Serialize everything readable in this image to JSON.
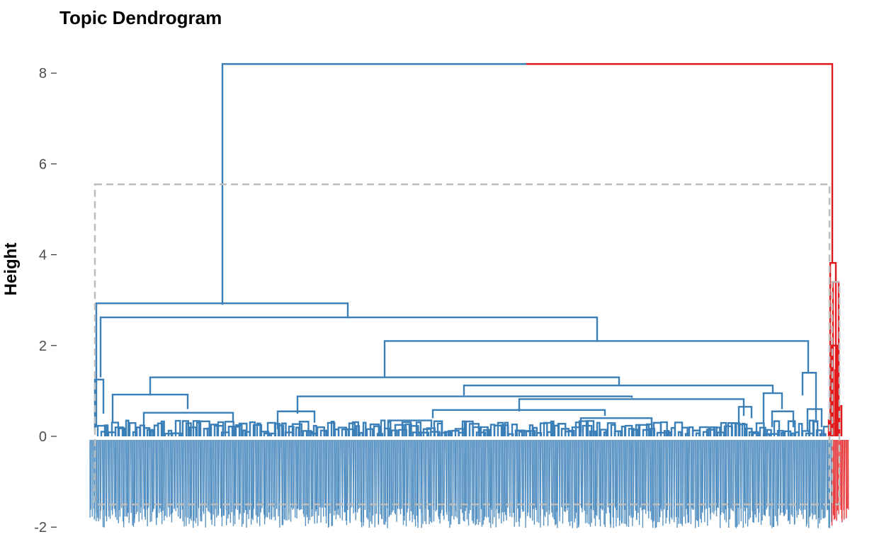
{
  "chart_data": {
    "type": "dendrogram",
    "title": "Topic Dendrogram",
    "ylabel": "Height",
    "xlabel": "",
    "ylim": [
      -2,
      8.2
    ],
    "yticks": [
      -2,
      0,
      2,
      4,
      6,
      8
    ],
    "grid": false,
    "colors": {
      "cluster_1": "#3a7fb8",
      "cluster_2": "#e31a1c",
      "rect": "#bdbdbd"
    },
    "clusters": [
      {
        "color": "#3a7fb8",
        "leaf_share": 0.965
      },
      {
        "color": "#e31a1c",
        "leaf_share": 0.035
      }
    ],
    "merges": [
      {
        "height": 8.2,
        "x": [
          0.17,
          0.98
        ],
        "split_color_at": 0.58
      },
      {
        "height": 2.9,
        "x": [
          0.0,
          0.34
        ]
      },
      {
        "height": 2.6,
        "x": [
          0.01,
          0.67
        ]
      },
      {
        "height": 2.1,
        "x": [
          0.39,
          0.96
        ]
      },
      {
        "height": 1.3,
        "x": [
          0.08,
          0.71
        ]
      },
      {
        "height": 1.4,
        "x": [
          0.95,
          0.97
        ]
      },
      {
        "height": 1.1,
        "x": [
          0.5,
          0.71
        ]
      },
      {
        "height": 0.9,
        "x": [
          0.93,
          0.95
        ]
      },
      {
        "height": 0.9,
        "x": [
          0.2,
          0.84
        ]
      },
      {
        "height": 0.9,
        "x": [
          0.02,
          0.12
        ]
      },
      {
        "height": 0.8,
        "x": [
          0.28,
          0.88
        ]
      },
      {
        "height": 0.6,
        "x": [
          0.56,
          0.77
        ]
      },
      {
        "height": 3.8,
        "x": [
          0.981,
          0.988
        ],
        "cluster": 2
      },
      {
        "height": 3.4,
        "x": [
          0.983,
          0.99
        ],
        "cluster": 2
      }
    ],
    "cut_rects": [
      {
        "cluster": 1,
        "ymin": -1.5,
        "ymax": 5.55
      },
      {
        "cluster": 2,
        "ymin": -1.5,
        "ymax": 3.4
      }
    ]
  }
}
